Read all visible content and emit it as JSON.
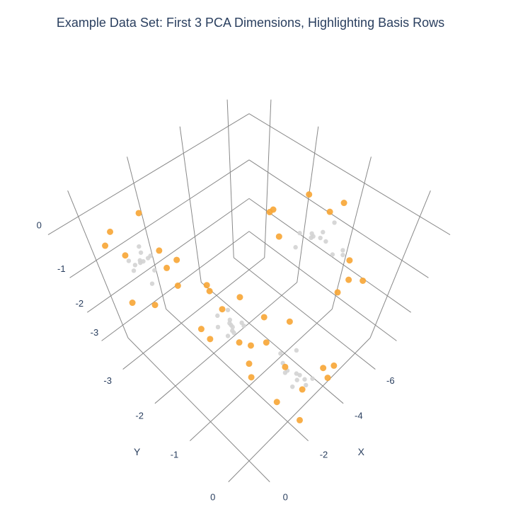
{
  "chart_data": {
    "type": "scatter3d",
    "title": "Example Data Set: First 3 PCA Dimensions, Highlighting Basis Rows",
    "xaxis_title": "X",
    "yaxis_title": "Y",
    "xlim": [
      -7,
      1
    ],
    "xticks": [
      0,
      -2,
      -4,
      -6
    ],
    "ylim": [
      -3.5,
      0.5
    ],
    "yticks": [
      0,
      -1,
      -2,
      -3
    ],
    "zlim": [
      -3.5,
      0.5
    ],
    "zticks": [
      0,
      -1,
      -2,
      -3
    ],
    "grid": true,
    "series": [
      {
        "color": "#d3d3d3",
        "x": [
          -5.1,
          -4.8,
          -5.3,
          -4.9,
          -5.0,
          -5.4,
          -4.7,
          -5.2,
          -4.6,
          -5.5,
          -4.9,
          -5.1,
          -1.0,
          -0.8,
          -1.2,
          -0.7,
          -1.3,
          -0.9,
          -1.1,
          -0.6,
          -1.4,
          -1.0,
          -0.8,
          -1.2,
          -3.0,
          -2.7,
          -3.3,
          -2.9,
          -3.1,
          -2.6,
          -3.4,
          -2.8,
          -3.2,
          -3.0,
          -2.5,
          -3.5,
          -2.0,
          -1.8,
          -2.2,
          -1.7,
          -2.3,
          -1.9,
          -2.1,
          -1.6,
          -2.4,
          -2.0,
          -1.8,
          -2.2
        ],
        "y": [
          -1.0,
          -0.8,
          -1.2,
          -1.1,
          -0.7,
          -0.9,
          -1.3,
          -0.6,
          -1.0,
          -1.1,
          -0.5,
          -1.4,
          -3.0,
          -2.8,
          -3.1,
          -2.9,
          -3.2,
          -2.7,
          -3.0,
          -2.9,
          -3.1,
          -2.6,
          -3.2,
          -2.8,
          -2.0,
          -1.8,
          -2.2,
          -1.9,
          -2.1,
          -1.7,
          -2.3,
          -2.0,
          -1.8,
          -2.4,
          -2.1,
          -1.9,
          0.0,
          -0.2,
          0.1,
          -0.1,
          0.2,
          -0.3,
          0.0,
          0.1,
          -0.2,
          0.2,
          -0.1,
          0.0
        ],
        "z": [
          -0.5,
          -0.3,
          -0.7,
          -0.4,
          -0.6,
          -0.2,
          -0.8,
          -0.5,
          -0.3,
          -0.6,
          -0.4,
          -0.7,
          -1.0,
          -0.8,
          -1.2,
          -0.9,
          -1.1,
          -1.3,
          -0.7,
          -1.0,
          -1.2,
          -0.9,
          -1.1,
          -0.8,
          -3.0,
          -2.8,
          -3.2,
          -2.9,
          -3.1,
          -2.7,
          -3.0,
          -3.3,
          -2.8,
          -3.1,
          -2.9,
          -3.2,
          -1.5,
          -1.3,
          -1.7,
          -1.4,
          -1.6,
          -1.2,
          -1.8,
          -1.5,
          -1.3,
          -1.6,
          -1.4,
          -1.7
        ]
      },
      {
        "color": "#f7a534",
        "x": [
          -5.6,
          -4.4,
          -5.8,
          -4.2,
          -5.0,
          -6.0,
          -4.5,
          -5.3,
          -4.8,
          -5.7,
          -0.3,
          -1.6,
          -0.5,
          -1.8,
          -1.0,
          -0.2,
          -1.5,
          -0.6,
          -1.9,
          -1.1,
          -3.6,
          -2.3,
          -3.8,
          -2.4,
          -3.1,
          -2.2,
          -3.7,
          -2.6,
          -3.3,
          -2.9,
          -2.6,
          -1.3,
          -2.7,
          -1.4,
          -2.0,
          -1.2,
          -2.8,
          -1.7,
          -2.5,
          -1.5
        ],
        "y": [
          -1.5,
          -0.3,
          -0.6,
          -1.6,
          -0.1,
          -1.2,
          -1.8,
          -0.4,
          -1.7,
          -0.9,
          -3.3,
          -2.5,
          -2.4,
          -3.4,
          -3.5,
          -2.9,
          -2.3,
          -3.3,
          -3.0,
          -2.4,
          -2.6,
          -1.4,
          -1.5,
          -2.6,
          -2.7,
          -2.2,
          -2.1,
          -1.3,
          -1.6,
          -2.5,
          0.4,
          -0.6,
          -0.5,
          0.4,
          0.5,
          0.0,
          0.2,
          -0.5,
          -0.4,
          0.3
        ],
        "z": [
          -0.1,
          -0.9,
          -1.0,
          0.0,
          -0.7,
          -0.4,
          -0.3,
          -1.1,
          -0.9,
          0.1,
          -0.6,
          -1.5,
          -1.4,
          -0.5,
          -1.3,
          -1.7,
          -0.6,
          -0.4,
          -1.6,
          -0.3,
          -3.4,
          -2.5,
          -2.6,
          -3.5,
          -2.4,
          -3.3,
          -2.5,
          -3.4,
          -3.5,
          -2.3,
          -1.1,
          -2.0,
          -1.0,
          -2.1,
          -0.9,
          -1.9,
          -1.6,
          -1.0,
          -2.2,
          -1.2
        ]
      }
    ]
  }
}
